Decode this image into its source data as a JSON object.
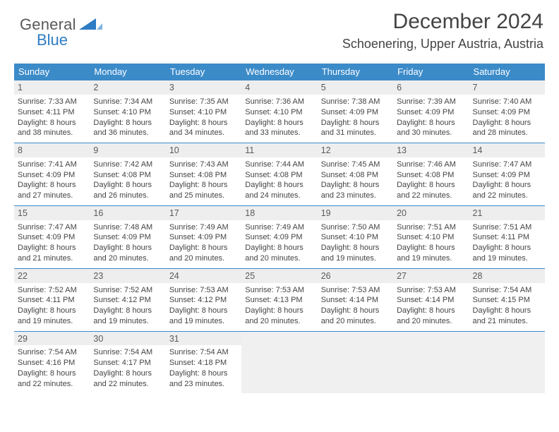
{
  "logo": {
    "word1": "General",
    "word2": "Blue"
  },
  "title": "December 2024",
  "location": "Schoenering, Upper Austria, Austria",
  "colors": {
    "header_bg": "#3b8bc9",
    "header_text": "#ffffff",
    "numrow_bg": "#eeeeee",
    "border": "#3b8bc9",
    "body_text": "#444444",
    "logo_gray": "#595959",
    "logo_blue": "#2f7cc4",
    "empty_bg": "#f0f0f0",
    "page_bg": "#ffffff"
  },
  "dow": [
    "Sunday",
    "Monday",
    "Tuesday",
    "Wednesday",
    "Thursday",
    "Friday",
    "Saturday"
  ],
  "weeks": [
    [
      {
        "n": "1",
        "sunrise": "7:33 AM",
        "sunset": "4:11 PM",
        "dlh": "8",
        "dlm": "38"
      },
      {
        "n": "2",
        "sunrise": "7:34 AM",
        "sunset": "4:10 PM",
        "dlh": "8",
        "dlm": "36"
      },
      {
        "n": "3",
        "sunrise": "7:35 AM",
        "sunset": "4:10 PM",
        "dlh": "8",
        "dlm": "34"
      },
      {
        "n": "4",
        "sunrise": "7:36 AM",
        "sunset": "4:10 PM",
        "dlh": "8",
        "dlm": "33"
      },
      {
        "n": "5",
        "sunrise": "7:38 AM",
        "sunset": "4:09 PM",
        "dlh": "8",
        "dlm": "31"
      },
      {
        "n": "6",
        "sunrise": "7:39 AM",
        "sunset": "4:09 PM",
        "dlh": "8",
        "dlm": "30"
      },
      {
        "n": "7",
        "sunrise": "7:40 AM",
        "sunset": "4:09 PM",
        "dlh": "8",
        "dlm": "28"
      }
    ],
    [
      {
        "n": "8",
        "sunrise": "7:41 AM",
        "sunset": "4:09 PM",
        "dlh": "8",
        "dlm": "27"
      },
      {
        "n": "9",
        "sunrise": "7:42 AM",
        "sunset": "4:08 PM",
        "dlh": "8",
        "dlm": "26"
      },
      {
        "n": "10",
        "sunrise": "7:43 AM",
        "sunset": "4:08 PM",
        "dlh": "8",
        "dlm": "25"
      },
      {
        "n": "11",
        "sunrise": "7:44 AM",
        "sunset": "4:08 PM",
        "dlh": "8",
        "dlm": "24"
      },
      {
        "n": "12",
        "sunrise": "7:45 AM",
        "sunset": "4:08 PM",
        "dlh": "8",
        "dlm": "23"
      },
      {
        "n": "13",
        "sunrise": "7:46 AM",
        "sunset": "4:08 PM",
        "dlh": "8",
        "dlm": "22"
      },
      {
        "n": "14",
        "sunrise": "7:47 AM",
        "sunset": "4:09 PM",
        "dlh": "8",
        "dlm": "22"
      }
    ],
    [
      {
        "n": "15",
        "sunrise": "7:47 AM",
        "sunset": "4:09 PM",
        "dlh": "8",
        "dlm": "21"
      },
      {
        "n": "16",
        "sunrise": "7:48 AM",
        "sunset": "4:09 PM",
        "dlh": "8",
        "dlm": "20"
      },
      {
        "n": "17",
        "sunrise": "7:49 AM",
        "sunset": "4:09 PM",
        "dlh": "8",
        "dlm": "20"
      },
      {
        "n": "18",
        "sunrise": "7:49 AM",
        "sunset": "4:09 PM",
        "dlh": "8",
        "dlm": "20"
      },
      {
        "n": "19",
        "sunrise": "7:50 AM",
        "sunset": "4:10 PM",
        "dlh": "8",
        "dlm": "19"
      },
      {
        "n": "20",
        "sunrise": "7:51 AM",
        "sunset": "4:10 PM",
        "dlh": "8",
        "dlm": "19"
      },
      {
        "n": "21",
        "sunrise": "7:51 AM",
        "sunset": "4:11 PM",
        "dlh": "8",
        "dlm": "19"
      }
    ],
    [
      {
        "n": "22",
        "sunrise": "7:52 AM",
        "sunset": "4:11 PM",
        "dlh": "8",
        "dlm": "19"
      },
      {
        "n": "23",
        "sunrise": "7:52 AM",
        "sunset": "4:12 PM",
        "dlh": "8",
        "dlm": "19"
      },
      {
        "n": "24",
        "sunrise": "7:53 AM",
        "sunset": "4:12 PM",
        "dlh": "8",
        "dlm": "19"
      },
      {
        "n": "25",
        "sunrise": "7:53 AM",
        "sunset": "4:13 PM",
        "dlh": "8",
        "dlm": "20"
      },
      {
        "n": "26",
        "sunrise": "7:53 AM",
        "sunset": "4:14 PM",
        "dlh": "8",
        "dlm": "20"
      },
      {
        "n": "27",
        "sunrise": "7:53 AM",
        "sunset": "4:14 PM",
        "dlh": "8",
        "dlm": "20"
      },
      {
        "n": "28",
        "sunrise": "7:54 AM",
        "sunset": "4:15 PM",
        "dlh": "8",
        "dlm": "21"
      }
    ],
    [
      {
        "n": "29",
        "sunrise": "7:54 AM",
        "sunset": "4:16 PM",
        "dlh": "8",
        "dlm": "22"
      },
      {
        "n": "30",
        "sunrise": "7:54 AM",
        "sunset": "4:17 PM",
        "dlh": "8",
        "dlm": "22"
      },
      {
        "n": "31",
        "sunrise": "7:54 AM",
        "sunset": "4:18 PM",
        "dlh": "8",
        "dlm": "23"
      },
      null,
      null,
      null,
      null
    ]
  ],
  "labels": {
    "sunrise": "Sunrise:",
    "sunset": "Sunset:",
    "daylight": "Daylight:",
    "hours": "hours",
    "and": "and",
    "minutes": "minutes."
  }
}
